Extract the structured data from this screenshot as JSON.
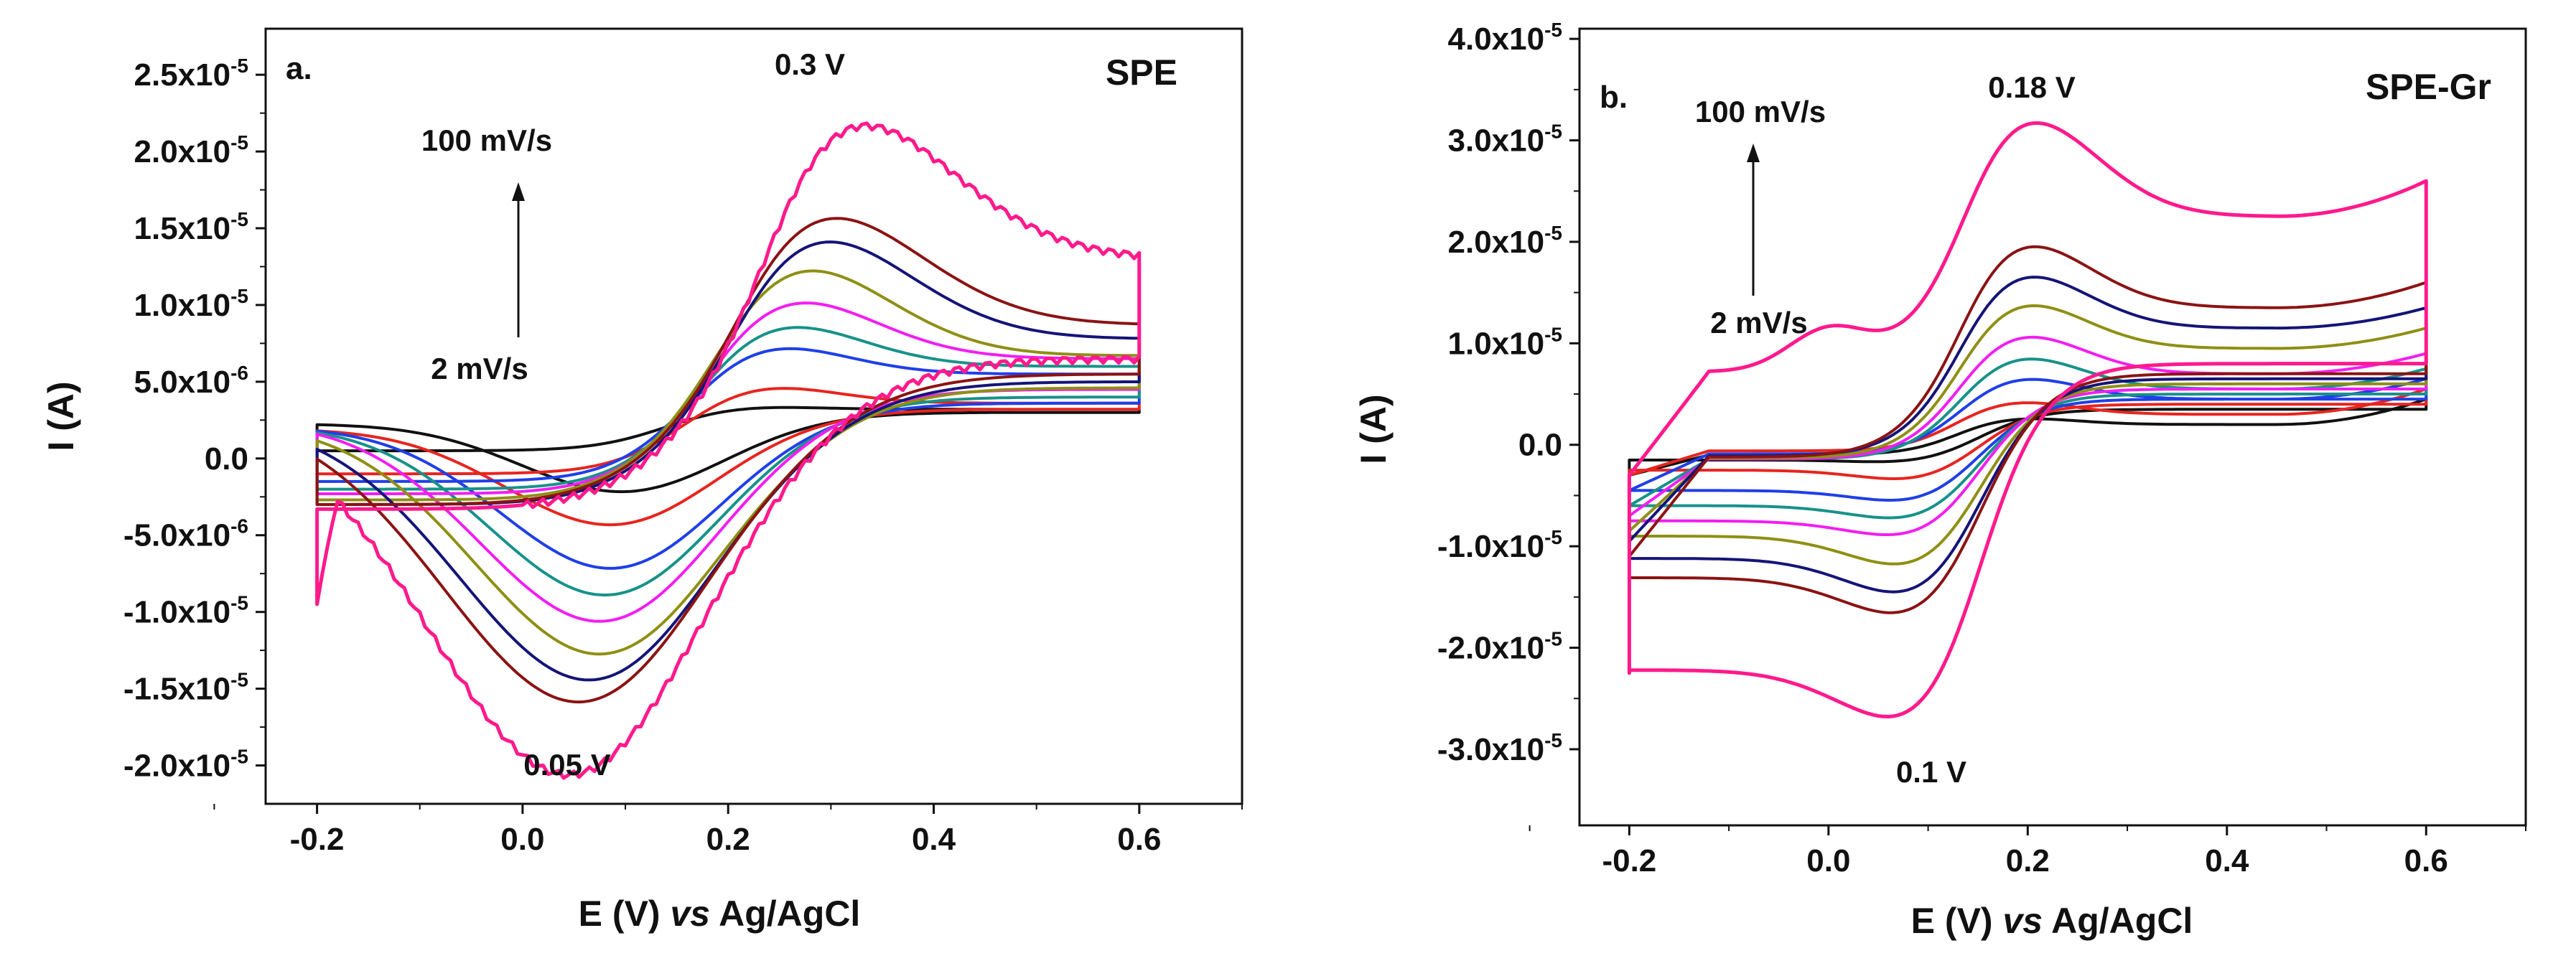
{
  "chart_data": [
    {
      "type": "line",
      "panel_label": "a.",
      "title": "SPE",
      "title_color": "#111111",
      "xlabel_parts": [
        "E  (V) ",
        "vs",
        " Ag/AgCl"
      ],
      "ylabel": "I  (A)",
      "xlim": [
        -0.25,
        0.7
      ],
      "ylim": [
        -2.25e-05,
        2.8e-05
      ],
      "x_ticks": [
        -0.2,
        0.0,
        0.2,
        0.4,
        0.6
      ],
      "x_tick_labels": [
        "-0.2",
        "0.0",
        "0.2",
        "0.4",
        "0.6"
      ],
      "y_ticks": [
        -2e-05,
        -1.5e-05,
        -1e-05,
        -5e-06,
        0.0,
        5e-06,
        1e-05,
        1.5e-05,
        2e-05,
        2.5e-05
      ],
      "y_tick_labels": [
        {
          "mantissa": "-2.0x10",
          "exp": "-5"
        },
        {
          "mantissa": "-1.5x10",
          "exp": "-5"
        },
        {
          "mantissa": "-1.0x10",
          "exp": "-5"
        },
        {
          "mantissa": "-5.0x10",
          "exp": "-6"
        },
        {
          "mantissa": "0.0",
          "exp": ""
        },
        {
          "mantissa": "5.0x10",
          "exp": "-6"
        },
        {
          "mantissa": "1.0x10",
          "exp": "-5"
        },
        {
          "mantissa": "1.5x10",
          "exp": "-5"
        },
        {
          "mantissa": "2.0x10",
          "exp": "-5"
        },
        {
          "mantissa": "2.5x10",
          "exp": "-5"
        }
      ],
      "annotations": [
        {
          "id": "peak-anodic",
          "text": "0.3 V"
        },
        {
          "id": "peak-cathodic",
          "text": "0.05 V"
        },
        {
          "id": "rate-high",
          "text": "100 mV/s"
        },
        {
          "id": "rate-low",
          "text": "2 mV/s"
        }
      ],
      "series": [
        {
          "color": "#111111",
          "pa_x": 0.2,
          "pa_y": 3.5e-06,
          "pc_x": 0.1,
          "pc_y": -1.5e-06,
          "start": 5e-07,
          "end_up": 3.2e-06,
          "end_dn": 3e-06,
          "wide": 0.07
        },
        {
          "color": "#e8241f",
          "pa_x": 0.22,
          "pa_y": 5e-06,
          "pc_x": 0.09,
          "pc_y": -3.2e-06,
          "start": -1e-06,
          "end_up": 3.6e-06,
          "end_dn": 3.2e-06,
          "wide": 0.075
        },
        {
          "color": "#1f3fe8",
          "pa_x": 0.225,
          "pa_y": 7.8e-06,
          "pc_x": 0.09,
          "pc_y": -5.8e-06,
          "start": -1.5e-06,
          "end_up": 5.5e-06,
          "end_dn": 3.6e-06,
          "wide": 0.08
        },
        {
          "color": "#17928a",
          "pa_x": 0.235,
          "pa_y": 9.3e-06,
          "pc_x": 0.085,
          "pc_y": -7.3e-06,
          "start": -2e-06,
          "end_up": 6e-06,
          "end_dn": 4e-06,
          "wide": 0.085
        },
        {
          "color": "#f21ef2",
          "pa_x": 0.245,
          "pa_y": 1.1e-05,
          "pc_x": 0.08,
          "pc_y": -8.8e-06,
          "start": -2.3e-06,
          "end_up": 6.5e-06,
          "end_dn": 4.5e-06,
          "wide": 0.09
        },
        {
          "color": "#8f8f14",
          "pa_x": 0.255,
          "pa_y": 1.32e-05,
          "pc_x": 0.08,
          "pc_y": -1.08e-05,
          "start": -2.7e-06,
          "end_up": 6.7e-06,
          "end_dn": 4.6e-06,
          "wide": 0.095
        },
        {
          "color": "#141478",
          "pa_x": 0.27,
          "pa_y": 1.52e-05,
          "pc_x": 0.07,
          "pc_y": -1.23e-05,
          "start": -3e-06,
          "end_up": 7.8e-06,
          "end_dn": 5e-06,
          "wide": 0.1
        },
        {
          "color": "#8b1313",
          "pa_x": 0.275,
          "pa_y": 1.68e-05,
          "pc_x": 0.06,
          "pc_y": -1.36e-05,
          "start": -3e-06,
          "end_up": 8.7e-06,
          "end_dn": 5.5e-06,
          "wide": 0.105
        },
        {
          "color": "#ff1a8c",
          "pa_x": 0.3,
          "pa_y": 2.32e-05,
          "pc_x": 0.05,
          "pc_y": -1.8e-05,
          "start": -3.3e-06,
          "end_up": 1.3e-05,
          "end_dn": 6.5e-06,
          "wide": 0.11,
          "bottom": -9.5e-06,
          "wavy": true
        }
      ]
    },
    {
      "type": "line",
      "panel_label": "b.",
      "title": "SPE-Gr",
      "title_color": "#ee1c24",
      "xlabel_parts": [
        "E  (V) ",
        "vs",
        " Ag/AgCl"
      ],
      "ylabel": "I  (A)",
      "xlim": [
        -0.25,
        0.7
      ],
      "ylim": [
        -3.75e-05,
        4.1e-05
      ],
      "x_ticks": [
        -0.2,
        0.0,
        0.2,
        0.4,
        0.6
      ],
      "x_tick_labels": [
        "-0.2",
        "0.0",
        "0.2",
        "0.4",
        "0.6"
      ],
      "y_ticks": [
        -3e-05,
        -2e-05,
        -1e-05,
        0.0,
        1e-05,
        2e-05,
        3e-05,
        4e-05
      ],
      "y_tick_labels": [
        {
          "mantissa": "-3.0x10",
          "exp": "-5"
        },
        {
          "mantissa": "-2.0x10",
          "exp": "-5"
        },
        {
          "mantissa": "-1.0x10",
          "exp": "-5"
        },
        {
          "mantissa": "0.0",
          "exp": ""
        },
        {
          "mantissa": "1.0x10",
          "exp": "-5"
        },
        {
          "mantissa": "2.0x10",
          "exp": "-5"
        },
        {
          "mantissa": "3.0x10",
          "exp": "-5"
        },
        {
          "mantissa": "4.0x10",
          "exp": "-5"
        }
      ],
      "annotations": [
        {
          "id": "peak-anodic",
          "text": "0.18 V"
        },
        {
          "id": "peak-cathodic",
          "text": "0.1 V"
        },
        {
          "id": "rate-high",
          "text": "100 mV/s"
        },
        {
          "id": "rate-low",
          "text": "2 mV/s"
        }
      ],
      "series": [
        {
          "color": "#111111",
          "pa_x": 0.18,
          "pa_y": 2.8e-06,
          "pc_x": 0.1,
          "pc_y": -2e-06,
          "start": -3e-06,
          "end_up": 4.5e-06,
          "end_dn": 3.5e-06,
          "base_up": 2e-06,
          "base_dn": -1.5e-06,
          "wide": 0.06
        },
        {
          "color": "#e8241f",
          "pa_x": 0.18,
          "pa_y": 4.5e-06,
          "pc_x": 0.1,
          "pc_y": -4e-06,
          "start": -3e-06,
          "end_up": 5.5e-06,
          "end_dn": 4e-06,
          "base_up": 3e-06,
          "base_dn": -2.5e-06,
          "wide": 0.06
        },
        {
          "color": "#1f3fe8",
          "pa_x": 0.185,
          "pa_y": 7e-06,
          "pc_x": 0.1,
          "pc_y": -6.3e-06,
          "start": -4.5e-06,
          "end_up": 6.5e-06,
          "end_dn": 4.5e-06,
          "base_up": 4.5e-06,
          "base_dn": -4.5e-06,
          "wide": 0.062
        },
        {
          "color": "#17928a",
          "pa_x": 0.185,
          "pa_y": 9.2e-06,
          "pc_x": 0.1,
          "pc_y": -8.2e-06,
          "start": -6e-06,
          "end_up": 7.5e-06,
          "end_dn": 5e-06,
          "base_up": 5.5e-06,
          "base_dn": -6e-06,
          "wide": 0.064
        },
        {
          "color": "#f21ef2",
          "pa_x": 0.185,
          "pa_y": 1.15e-05,
          "pc_x": 0.1,
          "pc_y": -1e-05,
          "start": -7e-06,
          "end_up": 9e-06,
          "end_dn": 5.5e-06,
          "base_up": 7e-06,
          "base_dn": -7.5e-06,
          "wide": 0.066
        },
        {
          "color": "#8f8f14",
          "pa_x": 0.185,
          "pa_y": 1.48e-05,
          "pc_x": 0.1,
          "pc_y": -1.33e-05,
          "start": -8.5e-06,
          "end_up": 1.15e-05,
          "end_dn": 6e-06,
          "base_up": 9.5e-06,
          "base_dn": -9e-06,
          "wide": 0.068
        },
        {
          "color": "#141478",
          "pa_x": 0.185,
          "pa_y": 1.78e-05,
          "pc_x": 0.1,
          "pc_y": -1.63e-05,
          "start": -9.5e-06,
          "end_up": 1.35e-05,
          "end_dn": 6.5e-06,
          "base_up": 1.15e-05,
          "base_dn": -1.12e-05,
          "wide": 0.07
        },
        {
          "color": "#8b1313",
          "pa_x": 0.185,
          "pa_y": 2.1e-05,
          "pc_x": 0.1,
          "pc_y": -1.85e-05,
          "start": -1.1e-05,
          "end_up": 1.6e-05,
          "end_dn": 7e-06,
          "base_up": 1.35e-05,
          "base_dn": -1.31e-05,
          "wide": 0.072
        },
        {
          "color": "#ff1a8c",
          "pa_x": 0.19,
          "pa_y": 3.35e-05,
          "pc_x": 0.1,
          "pc_y": -2.95e-05,
          "start": -3e-06,
          "end_up": 2.6e-05,
          "end_dn": 8e-06,
          "base_up": 2.25e-05,
          "base_dn": -2.22e-05,
          "wide": 0.075,
          "prepeak": true,
          "bottom": -2.25e-05
        }
      ]
    }
  ]
}
